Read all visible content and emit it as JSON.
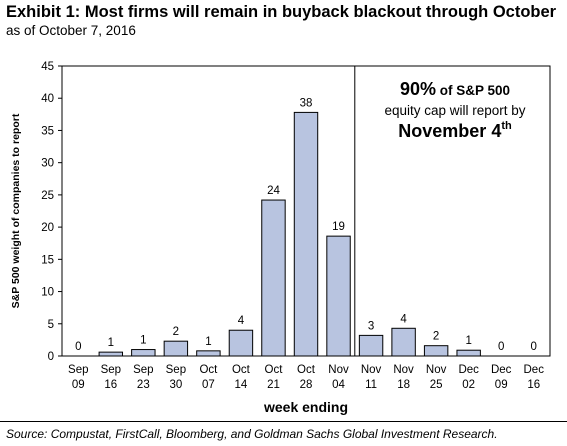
{
  "header": {
    "title": "Exhibit 1: Most firms will remain in buyback blackout through October",
    "subtitle": "as of October 7, 2016"
  },
  "footer": {
    "source": "Source: Compustat, FirstCall, Bloomberg, and Goldman Sachs Global Investment Research."
  },
  "annotation": {
    "line1_bold": "90%",
    "line1_rest": " of S&P 500",
    "line2": "equity cap will report by",
    "line3": "November 4",
    "line3_sup": "th"
  },
  "chart_data": {
    "type": "bar",
    "categories": [
      [
        "Sep",
        "09"
      ],
      [
        "Sep",
        "16"
      ],
      [
        "Sep",
        "23"
      ],
      [
        "Sep",
        "30"
      ],
      [
        "Oct",
        "07"
      ],
      [
        "Oct",
        "14"
      ],
      [
        "Oct",
        "21"
      ],
      [
        "Oct",
        "28"
      ],
      [
        "Nov",
        "04"
      ],
      [
        "Nov",
        "11"
      ],
      [
        "Nov",
        "18"
      ],
      [
        "Nov",
        "25"
      ],
      [
        "Dec",
        "02"
      ],
      [
        "Dec",
        "09"
      ],
      [
        "Dec",
        "16"
      ]
    ],
    "values": [
      0,
      0.6,
      1.0,
      2.3,
      0.8,
      4.0,
      24.2,
      37.8,
      18.6,
      3.2,
      4.3,
      1.6,
      0.9,
      0,
      0
    ],
    "data_labels": [
      "0",
      "1",
      "1",
      "2",
      "1",
      "4",
      "24",
      "38",
      "19",
      "3",
      "4",
      "2",
      "1",
      "0",
      "0"
    ],
    "ylabel": "S&P 500 weight of companies to report",
    "xlabel": "week ending",
    "ylim": [
      0,
      45
    ],
    "yticks": [
      0,
      5,
      10,
      15,
      20,
      25,
      30,
      35,
      40,
      45
    ],
    "divider_after": "Nov 04",
    "bar_color": "#b8c4e0",
    "bar_edge": "#000000"
  }
}
